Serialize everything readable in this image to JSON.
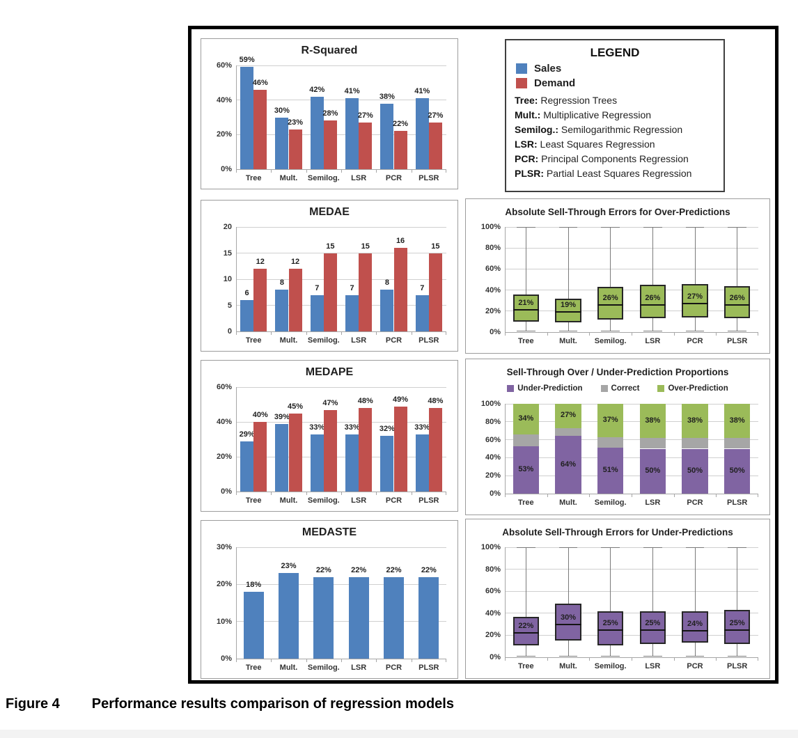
{
  "figure": {
    "caption_label": "Figure 4",
    "caption_text": "Performance results comparison of regression models"
  },
  "colors": {
    "sales": "#4F81BD",
    "demand": "#C0504D",
    "over": "#9BBB59",
    "under": "#8064A2",
    "correct": "#A6A6A6"
  },
  "legend_box": {
    "title": "LEGEND",
    "swatches": [
      {
        "label": "Sales",
        "color": "#4F81BD"
      },
      {
        "label": "Demand",
        "color": "#C0504D"
      }
    ],
    "entries": [
      {
        "abbr": "Tree:",
        "desc": " Regression Trees"
      },
      {
        "abbr": "Mult.:",
        "desc": " Multiplicative Regression"
      },
      {
        "abbr": "Semilog.:",
        "desc": " Semilogarithmic Regression"
      },
      {
        "abbr": "LSR:",
        "desc": " Least Squares Regression"
      },
      {
        "abbr": "PCR:",
        "desc": " Principal Components Regression"
      },
      {
        "abbr": "PLSR:",
        "desc": " Partial Least Squares Regression"
      }
    ]
  },
  "chart_data": [
    {
      "type": "bar",
      "title": "R-Squared",
      "categories": [
        "Tree",
        "Mult.",
        "Semilog.",
        "LSR",
        "PCR",
        "PLSR"
      ],
      "series": [
        {
          "name": "Sales",
          "color": "#4F81BD",
          "values": [
            59,
            30,
            42,
            41,
            38,
            41
          ]
        },
        {
          "name": "Demand",
          "color": "#C0504D",
          "values": [
            46,
            23,
            28,
            27,
            22,
            27
          ]
        }
      ],
      "value_suffix": "%",
      "ylim": [
        0,
        60
      ],
      "yticks": [
        {
          "v": 0,
          "label": "0%"
        },
        {
          "v": 20,
          "label": "20%"
        },
        {
          "v": 40,
          "label": "40%"
        },
        {
          "v": 60,
          "label": "60%"
        }
      ]
    },
    {
      "type": "bar",
      "title": "MEDAE",
      "categories": [
        "Tree",
        "Mult.",
        "Semilog.",
        "LSR",
        "PCR",
        "PLSR"
      ],
      "series": [
        {
          "name": "Sales",
          "color": "#4F81BD",
          "values": [
            6,
            8,
            7,
            7,
            8,
            7
          ]
        },
        {
          "name": "Demand",
          "color": "#C0504D",
          "values": [
            12,
            12,
            15,
            15,
            16,
            15
          ]
        }
      ],
      "value_suffix": "",
      "ylim": [
        0,
        20
      ],
      "yticks": [
        {
          "v": 0,
          "label": "0"
        },
        {
          "v": 5,
          "label": "5"
        },
        {
          "v": 10,
          "label": "10"
        },
        {
          "v": 15,
          "label": "15"
        },
        {
          "v": 20,
          "label": "20"
        }
      ]
    },
    {
      "type": "boxplot",
      "title": "Absolute Sell-Through Errors for Over-Predictions",
      "categories": [
        "Tree",
        "Mult.",
        "Semilog.",
        "LSR",
        "PCR",
        "PLSR"
      ],
      "color": "#9BBB59",
      "boxes": [
        {
          "lo": 1,
          "q1": 10,
          "med": 21,
          "q3": 36,
          "hi": 100,
          "label": "21%"
        },
        {
          "lo": 1,
          "q1": 9,
          "med": 19,
          "q3": 32,
          "hi": 100,
          "label": "19%"
        },
        {
          "lo": 1,
          "q1": 12,
          "med": 26,
          "q3": 43,
          "hi": 100,
          "label": "26%"
        },
        {
          "lo": 1,
          "q1": 13,
          "med": 26,
          "q3": 45,
          "hi": 100,
          "label": "26%"
        },
        {
          "lo": 1,
          "q1": 14,
          "med": 27,
          "q3": 46,
          "hi": 100,
          "label": "27%"
        },
        {
          "lo": 1,
          "q1": 13,
          "med": 26,
          "q3": 44,
          "hi": 100,
          "label": "26%"
        }
      ],
      "ylim": [
        0,
        100
      ],
      "yticks": [
        {
          "v": 0,
          "label": "0%"
        },
        {
          "v": 20,
          "label": "20%"
        },
        {
          "v": 40,
          "label": "40%"
        },
        {
          "v": 60,
          "label": "60%"
        },
        {
          "v": 80,
          "label": "80%"
        },
        {
          "v": 100,
          "label": "100%"
        }
      ]
    },
    {
      "type": "bar",
      "title": "MEDAPE",
      "categories": [
        "Tree",
        "Mult.",
        "Semilog.",
        "LSR",
        "PCR",
        "PLSR"
      ],
      "series": [
        {
          "name": "Sales",
          "color": "#4F81BD",
          "values": [
            29,
            39,
            33,
            33,
            32,
            33
          ]
        },
        {
          "name": "Demand",
          "color": "#C0504D",
          "values": [
            40,
            45,
            47,
            48,
            49,
            48
          ]
        }
      ],
      "value_suffix": "%",
      "ylim": [
        0,
        60
      ],
      "yticks": [
        {
          "v": 0,
          "label": "0%"
        },
        {
          "v": 20,
          "label": "20%"
        },
        {
          "v": 40,
          "label": "40%"
        },
        {
          "v": 60,
          "label": "60%"
        }
      ]
    },
    {
      "type": "stacked",
      "title": "Sell-Through Over / Under-Prediction Proportions",
      "categories": [
        "Tree",
        "Mult.",
        "Semilog.",
        "LSR",
        "PCR",
        "PLSR"
      ],
      "series": [
        {
          "name": "Under-Prediction",
          "color": "#8064A2",
          "values": [
            53,
            64,
            51,
            50,
            50,
            50
          ],
          "show_labels": true
        },
        {
          "name": "Correct",
          "color": "#A6A6A6",
          "values": [
            13,
            9,
            12,
            12,
            12,
            12
          ],
          "show_labels": false
        },
        {
          "name": "Over-Prediction",
          "color": "#9BBB59",
          "values": [
            34,
            27,
            37,
            38,
            38,
            38
          ],
          "show_labels": true
        }
      ],
      "value_suffix": "%",
      "ylim": [
        0,
        100
      ],
      "yticks": [
        {
          "v": 0,
          "label": "0%"
        },
        {
          "v": 20,
          "label": "20%"
        },
        {
          "v": 40,
          "label": "40%"
        },
        {
          "v": 60,
          "label": "60%"
        },
        {
          "v": 80,
          "label": "80%"
        },
        {
          "v": 100,
          "label": "100%"
        }
      ]
    },
    {
      "type": "bar",
      "title": "MEDASTE",
      "categories": [
        "Tree",
        "Mult.",
        "Semilog.",
        "LSR",
        "PCR",
        "PLSR"
      ],
      "series": [
        {
          "name": "Sales",
          "color": "#4F81BD",
          "values": [
            18,
            23,
            22,
            22,
            22,
            22
          ]
        }
      ],
      "value_suffix": "%",
      "ylim": [
        0,
        30
      ],
      "yticks": [
        {
          "v": 0,
          "label": "0%"
        },
        {
          "v": 10,
          "label": "10%"
        },
        {
          "v": 20,
          "label": "20%"
        },
        {
          "v": 30,
          "label": "30%"
        }
      ]
    },
    {
      "type": "boxplot",
      "title": "Absolute Sell-Through Errors for Under-Predictions",
      "categories": [
        "Tree",
        "Mult.",
        "Semilog.",
        "LSR",
        "PCR",
        "PLSR"
      ],
      "color": "#8064A2",
      "boxes": [
        {
          "lo": 1,
          "q1": 11,
          "med": 22,
          "q3": 37,
          "hi": 100,
          "label": "22%"
        },
        {
          "lo": 1,
          "q1": 15,
          "med": 30,
          "q3": 49,
          "hi": 100,
          "label": "30%"
        },
        {
          "lo": 1,
          "q1": 11,
          "med": 25,
          "q3": 42,
          "hi": 100,
          "label": "25%"
        },
        {
          "lo": 1,
          "q1": 12,
          "med": 25,
          "q3": 42,
          "hi": 100,
          "label": "25%"
        },
        {
          "lo": 1,
          "q1": 13,
          "med": 24,
          "q3": 42,
          "hi": 100,
          "label": "24%"
        },
        {
          "lo": 1,
          "q1": 12,
          "med": 25,
          "q3": 43,
          "hi": 100,
          "label": "25%"
        }
      ],
      "ylim": [
        0,
        100
      ],
      "yticks": [
        {
          "v": 0,
          "label": "0%"
        },
        {
          "v": 20,
          "label": "20%"
        },
        {
          "v": 40,
          "label": "40%"
        },
        {
          "v": 60,
          "label": "60%"
        },
        {
          "v": 80,
          "label": "80%"
        },
        {
          "v": 100,
          "label": "100%"
        }
      ]
    }
  ]
}
